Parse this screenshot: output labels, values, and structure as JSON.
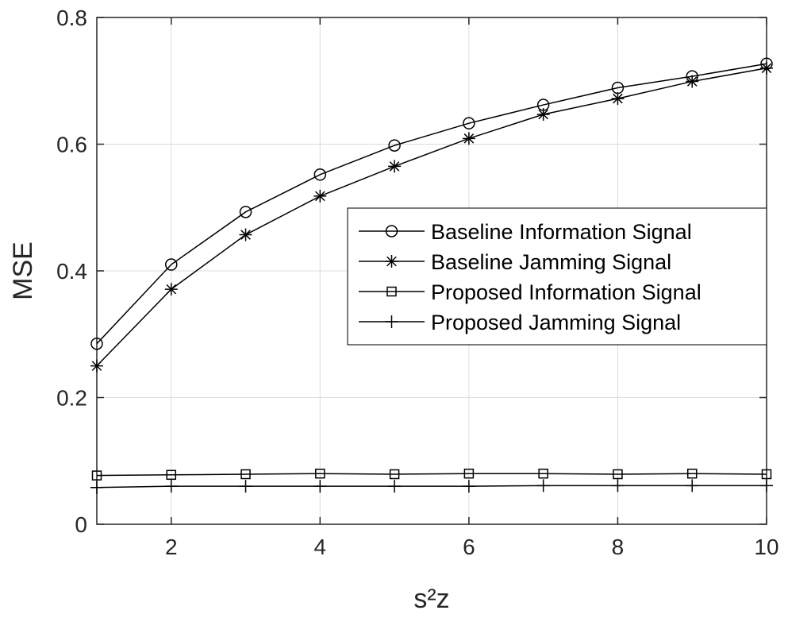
{
  "chart_data": {
    "type": "line",
    "title": "",
    "xlabel": "s²z",
    "ylabel": "MSE",
    "xlim": [
      1,
      10
    ],
    "ylim": [
      0,
      0.8
    ],
    "xticks": [
      2,
      4,
      6,
      8,
      10
    ],
    "yticks": [
      0,
      0.2,
      0.4,
      0.6,
      0.8
    ],
    "grid": true,
    "legend_position": "middle-right",
    "x": [
      1,
      2,
      3,
      4,
      5,
      6,
      7,
      8,
      9,
      10
    ],
    "series": [
      {
        "name": "Baseline Information Signal",
        "marker": "circle",
        "color": "#000000",
        "values": [
          0.285,
          0.41,
          0.493,
          0.552,
          0.598,
          0.633,
          0.662,
          0.689,
          0.707,
          0.727
        ]
      },
      {
        "name": "Baseline Jamming Signal",
        "marker": "asterisk",
        "color": "#000000",
        "values": [
          0.25,
          0.371,
          0.457,
          0.518,
          0.565,
          0.609,
          0.647,
          0.672,
          0.699,
          0.72
        ]
      },
      {
        "name": "Proposed Information Signal",
        "marker": "square",
        "color": "#000000",
        "values": [
          0.077,
          0.078,
          0.079,
          0.08,
          0.079,
          0.08,
          0.08,
          0.079,
          0.08,
          0.079
        ]
      },
      {
        "name": "Proposed Jamming Signal",
        "marker": "plus",
        "color": "#000000",
        "values": [
          0.058,
          0.06,
          0.06,
          0.06,
          0.06,
          0.06,
          0.061,
          0.061,
          0.061,
          0.061
        ]
      }
    ]
  }
}
